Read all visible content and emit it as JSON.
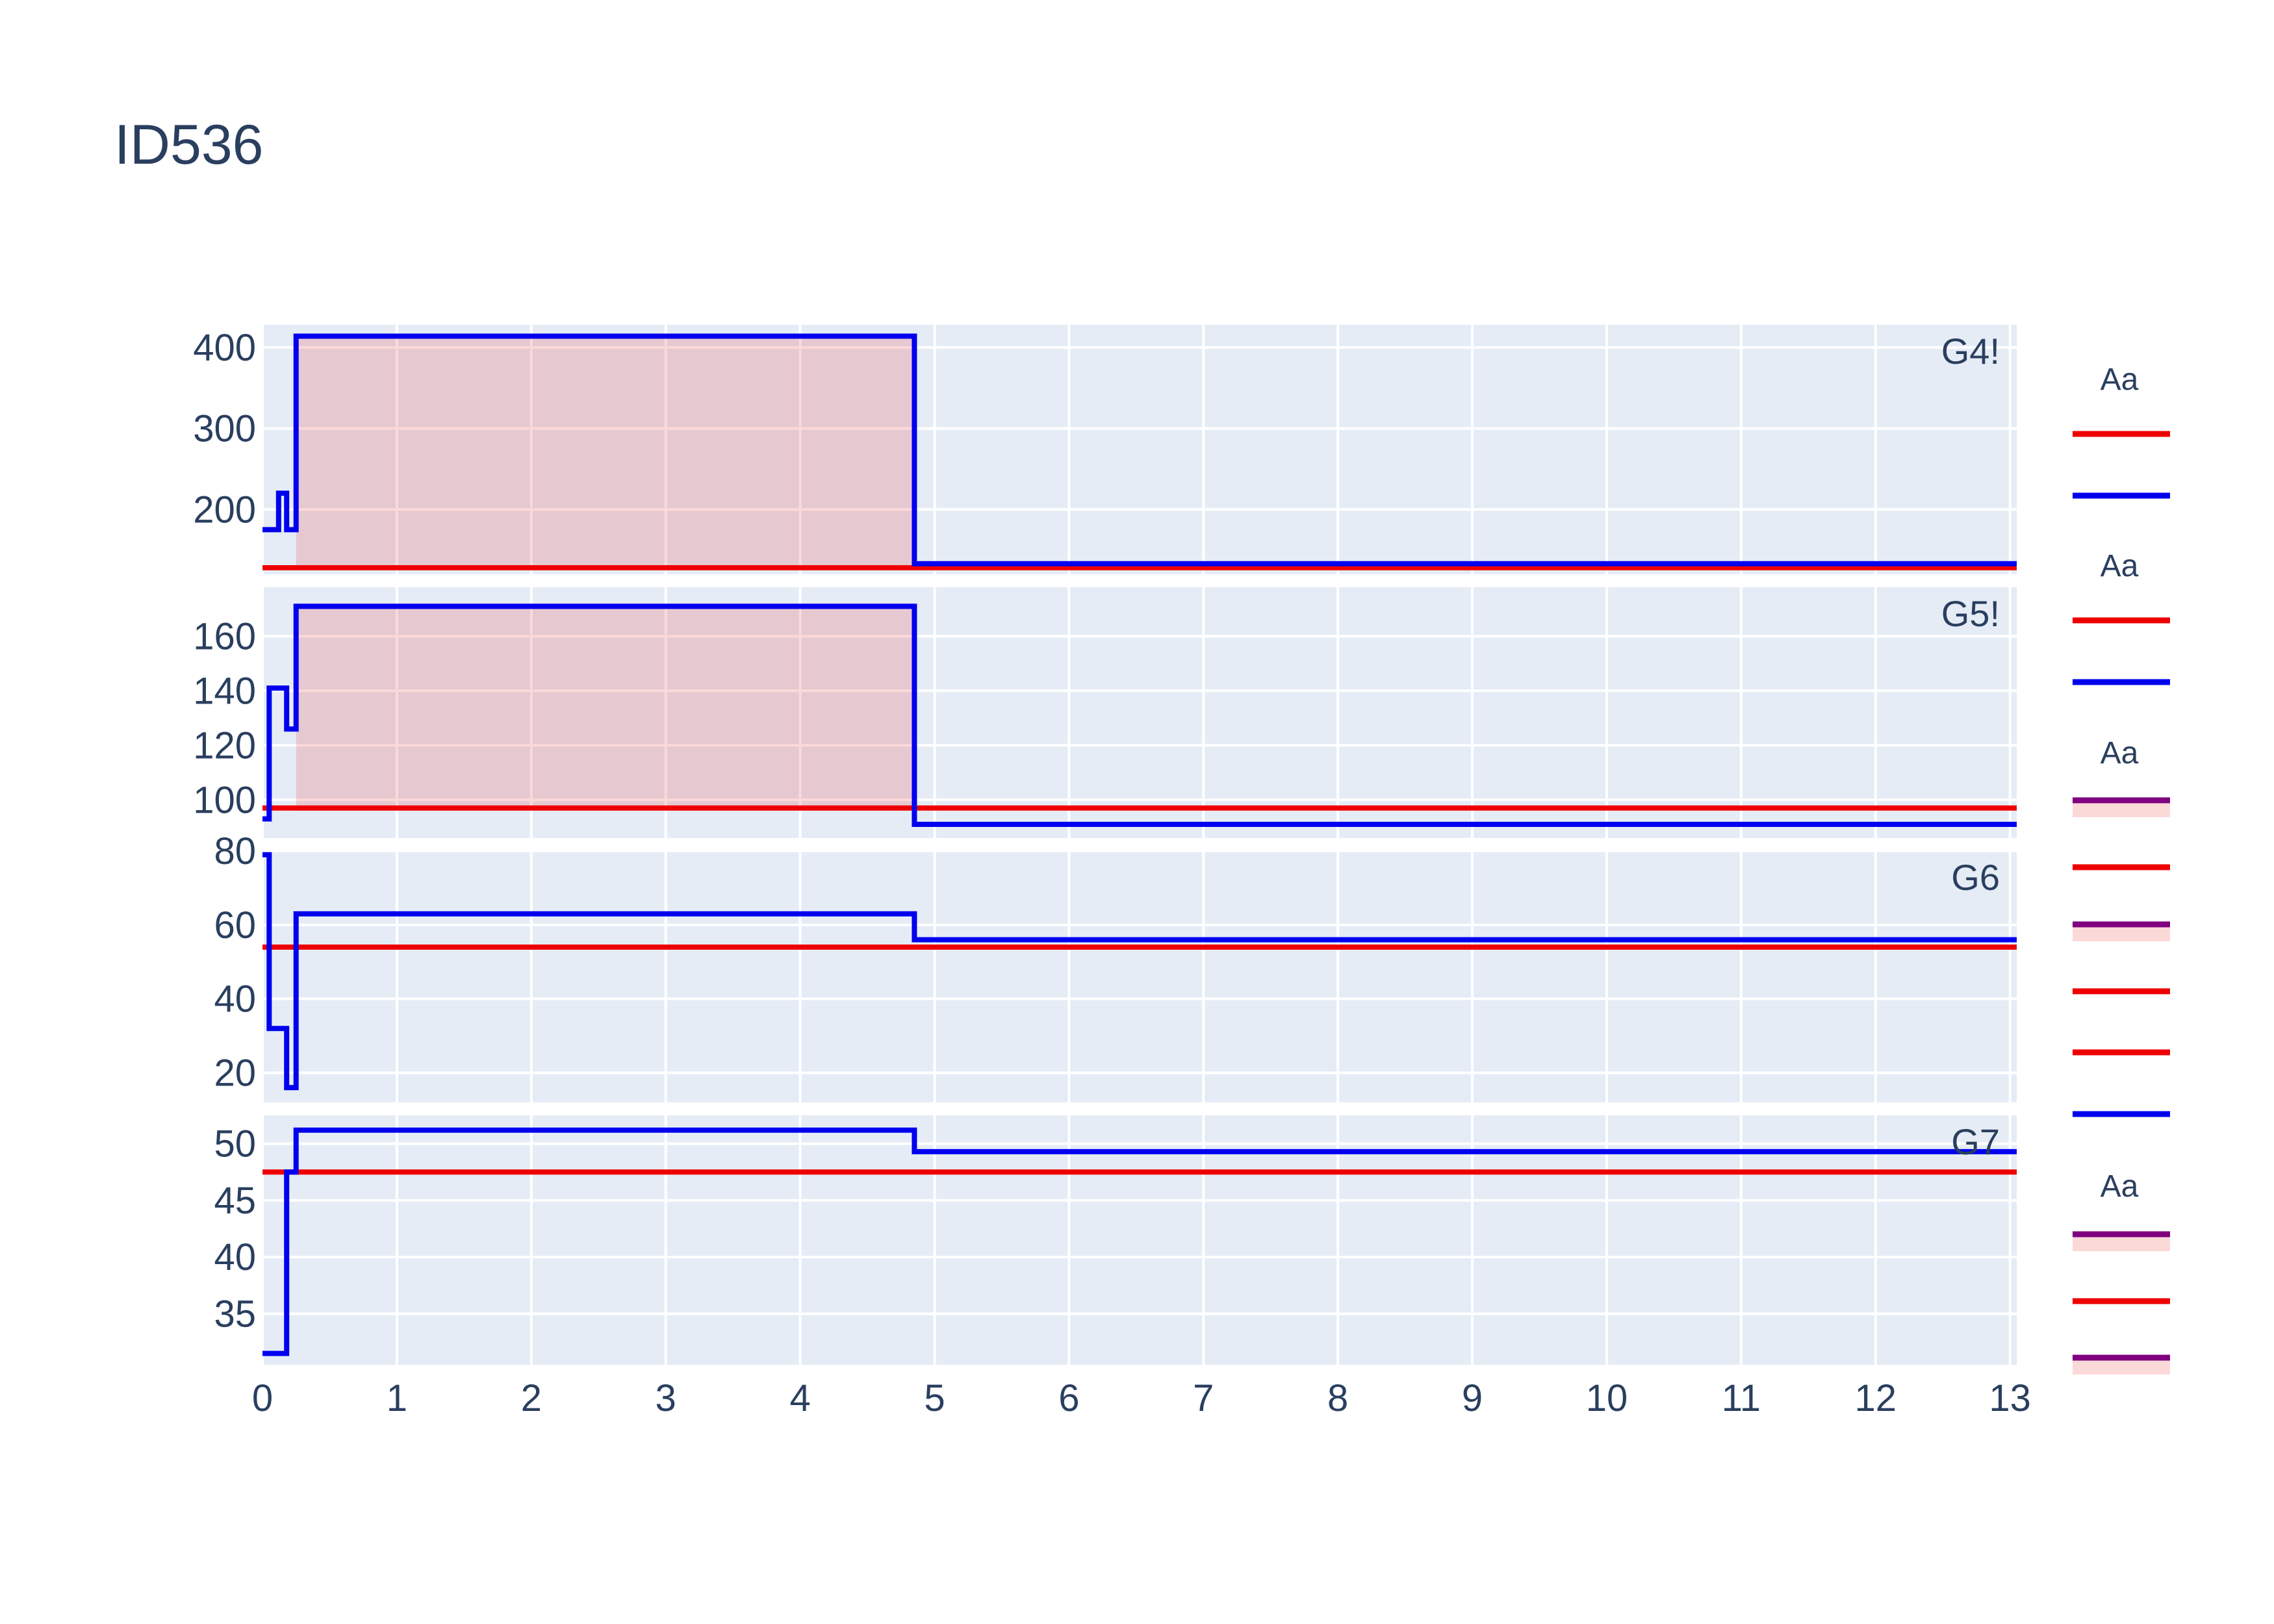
{
  "chart_data": {
    "type": "line",
    "title": "ID536",
    "x_ticks": [
      0,
      1,
      2,
      3,
      4,
      5,
      6,
      7,
      8,
      9,
      10,
      11,
      12,
      13
    ],
    "xlim": [
      0,
      13.05
    ],
    "colors": {
      "plot_bg": "#e5ecf6",
      "grid": "#ffffff",
      "blue": "#0000ee",
      "red": "#ee0000",
      "purple": "#800080",
      "fill": "rgba(238,0,0,0.15)"
    },
    "panels": [
      {
        "label": "G4!",
        "ylim": [
          120,
          428
        ],
        "yticks": [
          200,
          300,
          400
        ],
        "shaded": {
          "x0": 0.25,
          "x1": 4.85,
          "y0": 128,
          "y1": 414
        },
        "threshold": 128,
        "blue_steps": [
          [
            0,
            175
          ],
          [
            0.12,
            175
          ],
          [
            0.12,
            220
          ],
          [
            0.18,
            220
          ],
          [
            0.18,
            175
          ],
          [
            0.25,
            175
          ],
          [
            0.25,
            414
          ],
          [
            4.85,
            414
          ],
          [
            4.85,
            133
          ],
          [
            13.05,
            133
          ]
        ]
      },
      {
        "label": "G5!",
        "ylim": [
          86,
          178
        ],
        "yticks": [
          100,
          120,
          140,
          160
        ],
        "shaded": {
          "x0": 0.25,
          "x1": 4.85,
          "y0": 96,
          "y1": 171
        },
        "threshold": 97,
        "blue_steps": [
          [
            0,
            93
          ],
          [
            0.05,
            93
          ],
          [
            0.05,
            141
          ],
          [
            0.18,
            141
          ],
          [
            0.18,
            126
          ],
          [
            0.25,
            126
          ],
          [
            0.25,
            171
          ],
          [
            4.85,
            171
          ],
          [
            4.85,
            91
          ],
          [
            13.05,
            91
          ]
        ]
      },
      {
        "label": "G6",
        "ylim": [
          12,
          80
        ],
        "yticks": [
          20,
          40,
          60,
          80
        ],
        "threshold": 54,
        "blue_steps": [
          [
            0,
            79
          ],
          [
            0.05,
            79
          ],
          [
            0.05,
            32
          ],
          [
            0.18,
            32
          ],
          [
            0.18,
            16
          ],
          [
            0.25,
            16
          ],
          [
            0.25,
            63
          ],
          [
            4.85,
            63
          ],
          [
            4.85,
            56
          ],
          [
            13.05,
            56
          ]
        ]
      },
      {
        "label": "G7",
        "ylim": [
          30.5,
          52.5
        ],
        "yticks": [
          35,
          40,
          45,
          50
        ],
        "threshold": 47.5,
        "blue_steps": [
          [
            0,
            31.5
          ],
          [
            0.18,
            31.5
          ],
          [
            0.18,
            47.5
          ],
          [
            0.25,
            47.5
          ],
          [
            0.25,
            51.2
          ],
          [
            4.85,
            51.2
          ],
          [
            4.85,
            49.3
          ],
          [
            13.05,
            49.3
          ]
        ]
      }
    ],
    "legend": {
      "groups": [
        {
          "title": "Aa",
          "items": [
            {
              "color": "red"
            },
            {
              "color": "blue"
            }
          ]
        },
        {
          "title": "Aa",
          "items": [
            {
              "color": "red"
            },
            {
              "color": "blue"
            }
          ]
        },
        {
          "title": "Aa",
          "items": [
            {
              "color": "purple",
              "fill": true
            },
            {
              "color": "red"
            },
            {
              "color": "purple",
              "fill": true
            },
            {
              "color": "red"
            },
            {
              "color": "red"
            },
            {
              "color": "blue"
            }
          ]
        },
        {
          "title": "Aa",
          "items": [
            {
              "color": "purple",
              "fill": true
            },
            {
              "color": "red"
            },
            {
              "color": "purple",
              "fill": true
            }
          ]
        }
      ]
    }
  }
}
